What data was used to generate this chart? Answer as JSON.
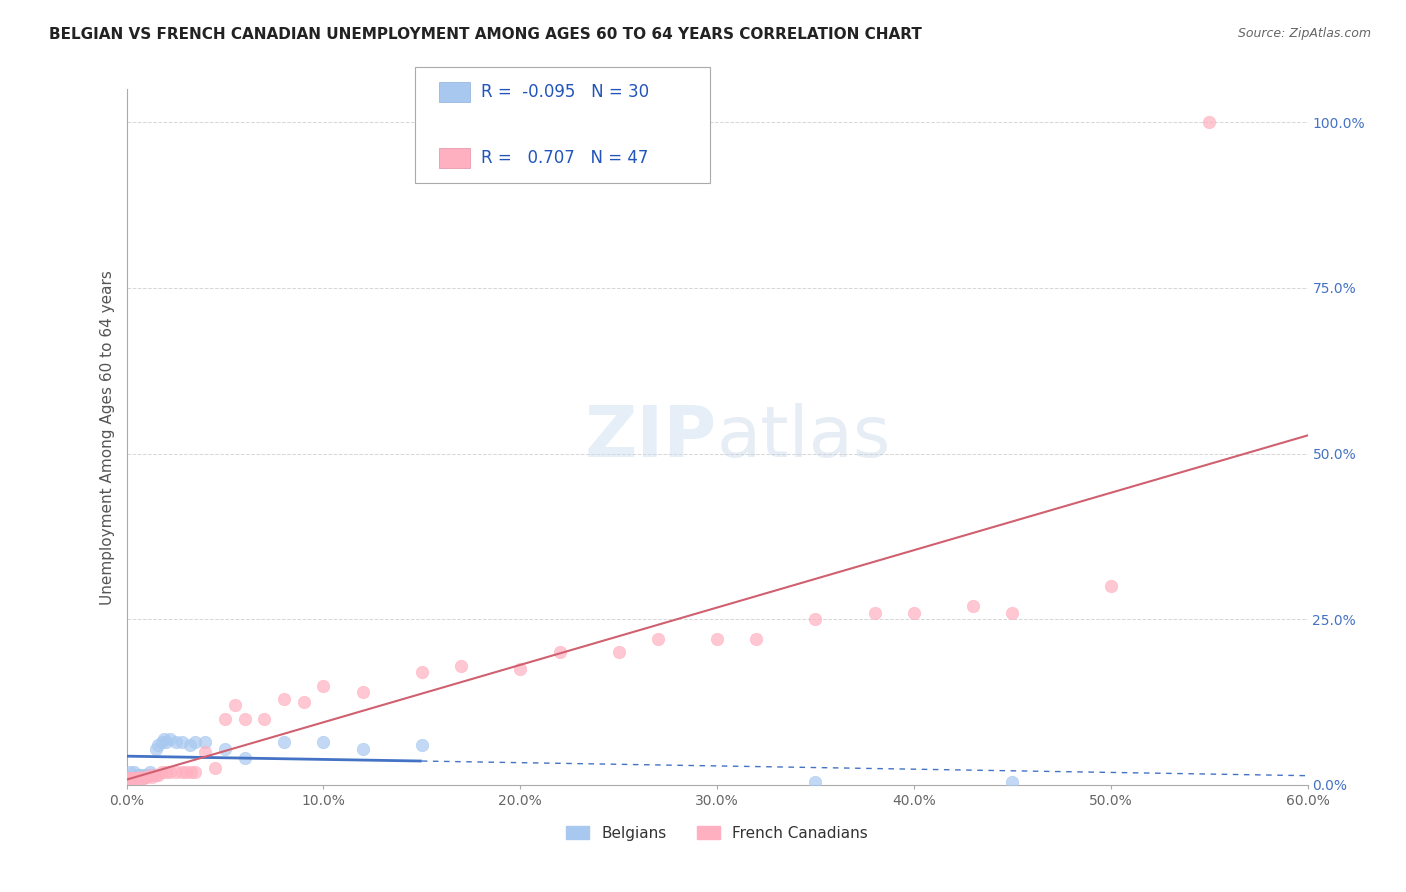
{
  "title": "BELGIAN VS FRENCH CANADIAN UNEMPLOYMENT AMONG AGES 60 TO 64 YEARS CORRELATION CHART",
  "source": "Source: ZipAtlas.com",
  "ylabel": "Unemployment Among Ages 60 to 64 years",
  "xlim": [
    0.0,
    0.6
  ],
  "ylim": [
    0.0,
    1.05
  ],
  "yticks_right": [
    0.0,
    0.25,
    0.5,
    0.75,
    1.0
  ],
  "yticklabels_right": [
    "0.0%",
    "25.0%",
    "50.0%",
    "75.0%",
    "100.0%"
  ],
  "grid_color": "#cccccc",
  "background_color": "#ffffff",
  "belgians_color": "#a8c8f0",
  "french_color": "#ffb0c0",
  "belgians_line_color": "#4472C4",
  "french_line_color": "#d06070",
  "legend_R_belgians": "-0.095",
  "legend_N_belgians": "30",
  "legend_R_french": "0.707",
  "legend_N_french": "47",
  "belgians_x": [
    0.002,
    0.003,
    0.004,
    0.005,
    0.006,
    0.007,
    0.008,
    0.009,
    0.01,
    0.012,
    0.013,
    0.015,
    0.016,
    0.018,
    0.019,
    0.02,
    0.022,
    0.025,
    0.028,
    0.032,
    0.035,
    0.04,
    0.05,
    0.06,
    0.08,
    0.1,
    0.12,
    0.15,
    0.35,
    0.45
  ],
  "belgians_y": [
    0.02,
    0.01,
    0.02,
    0.01,
    0.015,
    0.015,
    0.01,
    0.015,
    0.015,
    0.02,
    0.015,
    0.055,
    0.06,
    0.065,
    0.07,
    0.065,
    0.07,
    0.065,
    0.065,
    0.06,
    0.065,
    0.065,
    0.055,
    0.04,
    0.065,
    0.065,
    0.055,
    0.06,
    0.005,
    0.005
  ],
  "french_x": [
    0.0,
    0.002,
    0.003,
    0.004,
    0.005,
    0.006,
    0.007,
    0.008,
    0.009,
    0.01,
    0.012,
    0.013,
    0.015,
    0.016,
    0.018,
    0.02,
    0.022,
    0.025,
    0.028,
    0.03,
    0.033,
    0.035,
    0.04,
    0.045,
    0.05,
    0.055,
    0.06,
    0.07,
    0.08,
    0.09,
    0.1,
    0.12,
    0.15,
    0.17,
    0.2,
    0.22,
    0.25,
    0.27,
    0.3,
    0.32,
    0.35,
    0.38,
    0.4,
    0.43,
    0.45,
    0.5,
    0.55
  ],
  "french_y": [
    0.01,
    0.01,
    0.01,
    0.01,
    0.01,
    0.01,
    0.012,
    0.01,
    0.01,
    0.012,
    0.015,
    0.012,
    0.015,
    0.015,
    0.02,
    0.02,
    0.02,
    0.02,
    0.02,
    0.02,
    0.02,
    0.02,
    0.05,
    0.025,
    0.1,
    0.12,
    0.1,
    0.1,
    0.13,
    0.125,
    0.15,
    0.14,
    0.17,
    0.18,
    0.175,
    0.2,
    0.2,
    0.22,
    0.22,
    0.22,
    0.25,
    0.26,
    0.26,
    0.27,
    0.26,
    0.3,
    1.0
  ],
  "title_fontsize": 11,
  "source_fontsize": 9,
  "ylabel_fontsize": 11,
  "tick_fontsize": 10,
  "legend_fontsize": 12,
  "scatter_size": 80
}
